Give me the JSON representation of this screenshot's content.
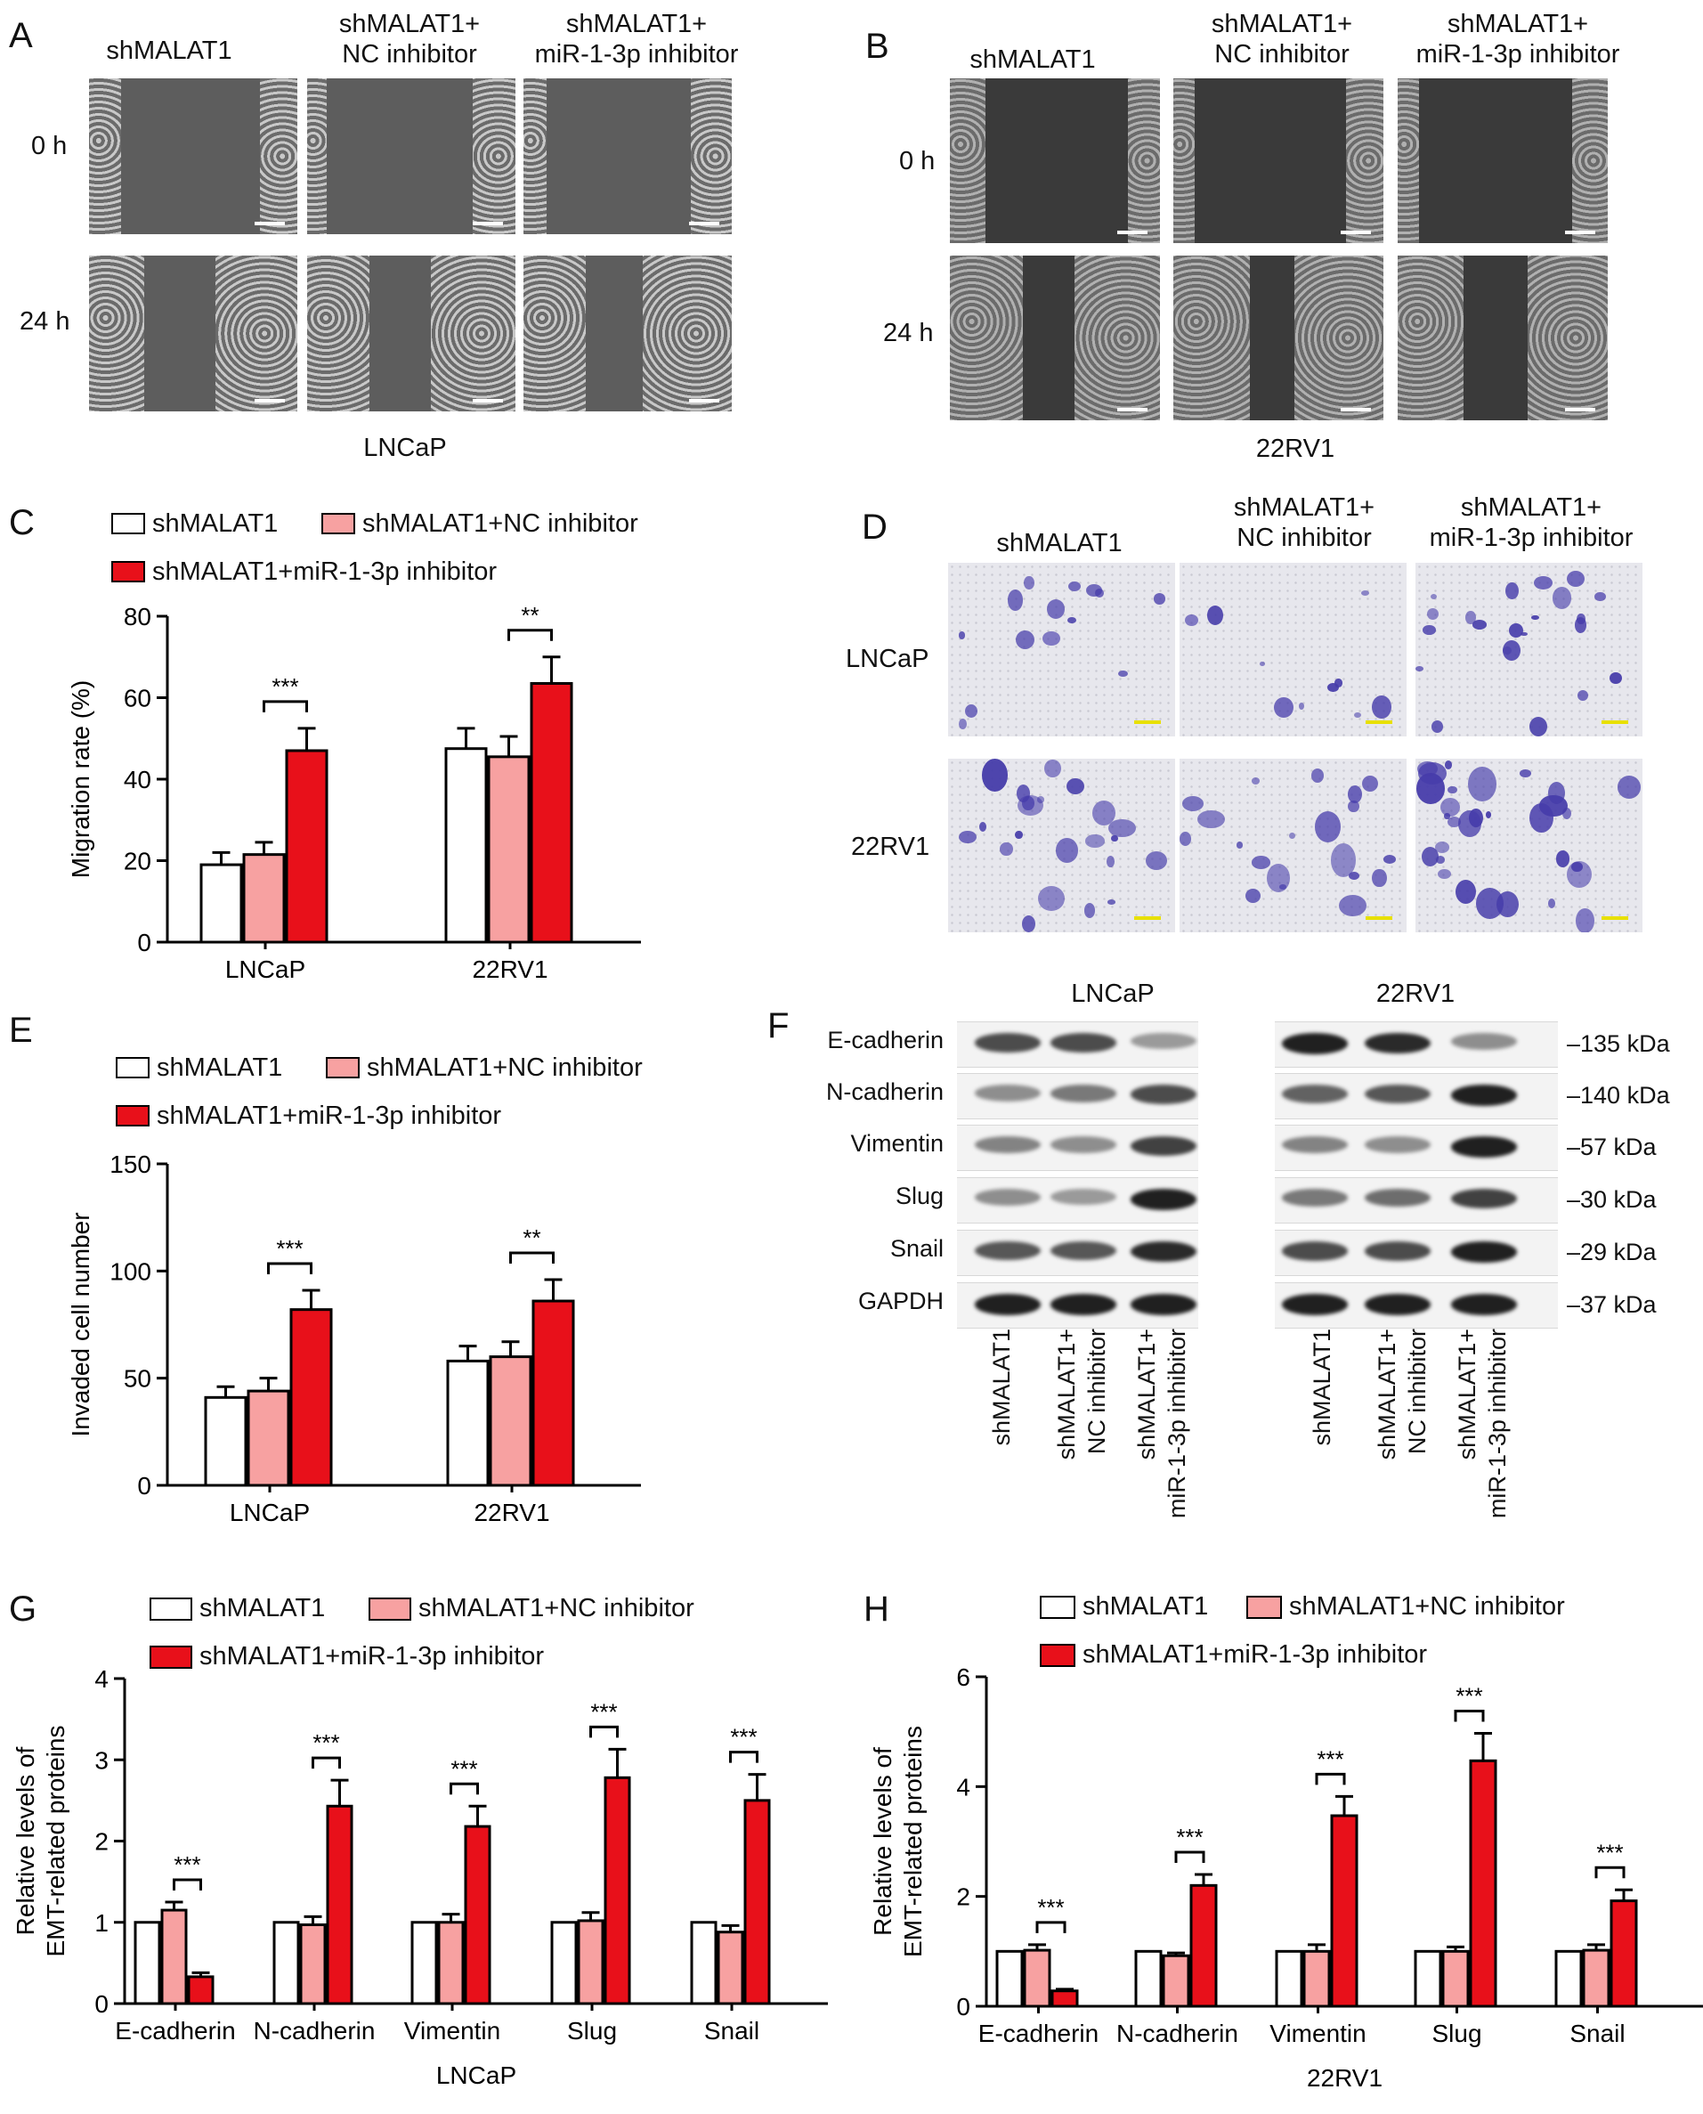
{
  "panels": {
    "A": {
      "letter": "A",
      "columns": [
        "shMALAT1",
        "shMALAT1+\nNC inhibitor",
        "shMALAT1+\nmiR-1-3p inhibitor"
      ],
      "rows": [
        "0 h",
        "24 h"
      ],
      "caption": "LNCaP"
    },
    "B": {
      "letter": "B",
      "columns": [
        "shMALAT1",
        "shMALAT1+\nNC inhibitor",
        "shMALAT1+\nmiR-1-3p inhibitor"
      ],
      "rows": [
        "0 h",
        "24 h"
      ],
      "caption": "22RV1"
    },
    "C": {
      "letter": "C"
    },
    "D": {
      "letter": "D",
      "columns": [
        "shMALAT1",
        "shMALAT1+\nNC inhibitor",
        "shMALAT1+\nmiR-1-3p inhibitor"
      ],
      "rows": [
        "LNCaP",
        "22RV1"
      ]
    },
    "E": {
      "letter": "E"
    },
    "F": {
      "letter": "F",
      "groups": [
        "LNCaP",
        "22RV1"
      ],
      "proteins": [
        "E-cadherin",
        "N-cadherin",
        "Vimentin",
        "Slug",
        "Snail",
        "GAPDH"
      ],
      "sizes": [
        "–135 kDa",
        "–140 kDa",
        "–57 kDa",
        "–30 kDa",
        "–29 kDa",
        "–37 kDa"
      ],
      "lanes": [
        "shMALAT1",
        "shMALAT1+\nNC inhibitor",
        "shMALAT1+\nmiR-1-3p inhibitor"
      ],
      "intensity": {
        "LNCaP": [
          [
            0.75,
            0.75,
            0.4
          ],
          [
            0.45,
            0.55,
            0.75
          ],
          [
            0.5,
            0.45,
            0.8
          ],
          [
            0.45,
            0.4,
            0.95
          ],
          [
            0.7,
            0.7,
            0.9
          ],
          [
            0.95,
            0.95,
            0.95
          ]
        ],
        "22RV1": [
          [
            0.95,
            0.9,
            0.45
          ],
          [
            0.65,
            0.7,
            0.95
          ],
          [
            0.5,
            0.45,
            0.95
          ],
          [
            0.55,
            0.6,
            0.8
          ],
          [
            0.75,
            0.75,
            0.95
          ],
          [
            0.95,
            0.95,
            0.95
          ]
        ]
      }
    },
    "G": {
      "letter": "G"
    },
    "H": {
      "letter": "H"
    }
  },
  "legend": {
    "series1": "shMALAT1",
    "series2": "shMALAT1+NC inhibitor",
    "series3": "shMALAT1+miR-1-3p inhibitor"
  },
  "colors": {
    "series1": "#ffffff",
    "series2": "#f7a1a1",
    "series3": "#e8101a"
  },
  "chart_data": [
    {
      "id": "C",
      "type": "bar",
      "categories": [
        "LNCaP",
        "22RV1"
      ],
      "ylabel": "Migration rate (%)",
      "ylim": [
        0,
        80
      ],
      "yticks": [
        0,
        20,
        40,
        60,
        80
      ],
      "series": [
        {
          "name": "shMALAT1",
          "values": [
            19,
            47.5
          ],
          "errors": [
            3,
            5
          ]
        },
        {
          "name": "shMALAT1+NC inhibitor",
          "values": [
            21.5,
            45.5
          ],
          "errors": [
            3,
            5
          ]
        },
        {
          "name": "shMALAT1+miR-1-3p inhibitor",
          "values": [
            47,
            63.5
          ],
          "errors": [
            5.5,
            6.5
          ]
        }
      ],
      "significance": [
        "***",
        "**"
      ]
    },
    {
      "id": "E",
      "type": "bar",
      "categories": [
        "LNCaP",
        "22RV1"
      ],
      "ylabel": "Invaded cell number",
      "ylim": [
        0,
        150
      ],
      "yticks": [
        0,
        50,
        100,
        150
      ],
      "series": [
        {
          "name": "shMALAT1",
          "values": [
            41,
            58
          ],
          "errors": [
            5,
            7
          ]
        },
        {
          "name": "shMALAT1+NC inhibitor",
          "values": [
            44,
            60
          ],
          "errors": [
            6,
            7
          ]
        },
        {
          "name": "shMALAT1+miR-1-3p inhibitor",
          "values": [
            82,
            86
          ],
          "errors": [
            9,
            10
          ]
        }
      ],
      "significance": [
        "***",
        "**"
      ]
    },
    {
      "id": "G",
      "type": "bar",
      "categories": [
        "E-cadherin",
        "N-cadherin",
        "Vimentin",
        "Slug",
        "Snail"
      ],
      "ylabel": "Relative levels of\nEMT-related proteins",
      "xlabel": "LNCaP",
      "ylim": [
        0,
        4
      ],
      "yticks": [
        0,
        1,
        2,
        3,
        4
      ],
      "series": [
        {
          "name": "shMALAT1",
          "values": [
            1,
            1,
            1,
            1,
            1
          ],
          "errors": [
            0,
            0,
            0,
            0,
            0
          ]
        },
        {
          "name": "shMALAT1+NC inhibitor",
          "values": [
            1.15,
            0.97,
            1.0,
            1.02,
            0.88
          ],
          "errors": [
            0.1,
            0.1,
            0.1,
            0.1,
            0.08
          ]
        },
        {
          "name": "shMALAT1+miR-1-3p inhibitor",
          "values": [
            0.33,
            2.43,
            2.18,
            2.78,
            2.5
          ],
          "errors": [
            0.05,
            0.32,
            0.25,
            0.35,
            0.32
          ]
        }
      ],
      "significance": [
        "***",
        "***",
        "***",
        "***",
        "***"
      ]
    },
    {
      "id": "H",
      "type": "bar",
      "categories": [
        "E-cadherin",
        "N-cadherin",
        "Vimentin",
        "Slug",
        "Snail"
      ],
      "ylabel": "Relative levels of\nEMT-related proteins",
      "xlabel": "22RV1",
      "ylim": [
        0,
        6
      ],
      "yticks": [
        0,
        2,
        4,
        6
      ],
      "series": [
        {
          "name": "shMALAT1",
          "values": [
            1,
            1,
            1,
            1,
            1
          ],
          "errors": [
            0,
            0,
            0,
            0,
            0
          ]
        },
        {
          "name": "shMALAT1+NC inhibitor",
          "values": [
            1.02,
            0.92,
            1.0,
            1.0,
            1.02
          ],
          "errors": [
            0.1,
            0.05,
            0.12,
            0.08,
            0.1
          ]
        },
        {
          "name": "shMALAT1+miR-1-3p inhibitor",
          "values": [
            0.28,
            2.2,
            3.47,
            4.47,
            1.92
          ],
          "errors": [
            0.03,
            0.2,
            0.35,
            0.5,
            0.2
          ]
        }
      ],
      "significance": [
        "***",
        "***",
        "***",
        "***",
        "***"
      ]
    }
  ]
}
